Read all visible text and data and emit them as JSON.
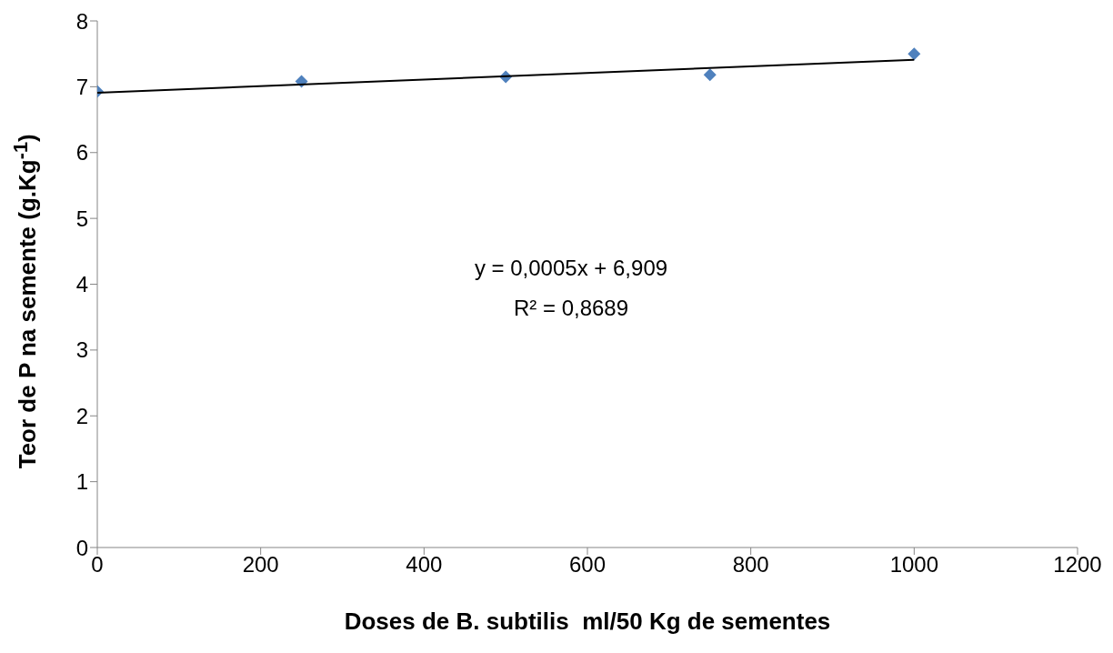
{
  "chart_data": {
    "type": "scatter",
    "xlabel": "Doses de B. subtilis  ml/50 Kg de sementes",
    "ylabel": "Teor de P na semente (g.Kg$^{-1}$)",
    "x": [
      0,
      250,
      500,
      750,
      1000
    ],
    "series": [
      {
        "color": "#4f81bd",
        "marker": "diamond",
        "values": [
          6.93,
          7.08,
          7.15,
          7.18,
          7.5
        ]
      },
      {
        "type": "line",
        "color": "#000000",
        "marker": "none",
        "x": [
          0,
          1000
        ],
        "values": [
          6.91,
          7.41
        ]
      }
    ],
    "xlim": [
      0,
      1200
    ],
    "xticks": [
      0,
      200,
      400,
      600,
      800,
      1000,
      1200
    ],
    "ylim": [
      0,
      8
    ],
    "yticks": [
      0,
      1,
      2,
      3,
      4,
      5,
      6,
      7,
      8
    ],
    "grid": false,
    "legend": false,
    "annotations": [
      "y = 0,0005x + 6,909",
      "R² = 0,8689"
    ]
  }
}
